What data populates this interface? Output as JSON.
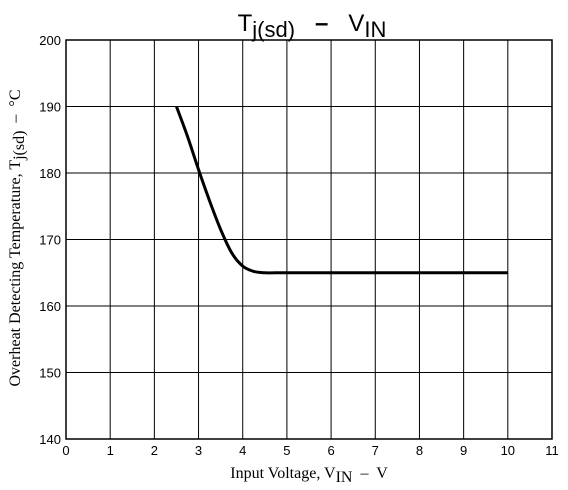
{
  "chart_data": {
    "type": "line",
    "title": {
      "main": "T",
      "main_sub": "j(sd)",
      "dash": "–",
      "rhs": "V",
      "rhs_sub": "IN"
    },
    "xlabel": {
      "pre": "Input Voltage, V",
      "sub": "IN",
      "post": "  –  V"
    },
    "ylabel": {
      "pre": "Overheat Detecting Temperature, T",
      "sub": "j(sd)",
      "post": "  –  °C"
    },
    "xlim": [
      0,
      11
    ],
    "ylim": [
      140,
      200
    ],
    "x_ticks": [
      "0",
      "1",
      "2",
      "3",
      "4",
      "5",
      "6",
      "7",
      "8",
      "9",
      "10",
      "11"
    ],
    "y_ticks": [
      "140",
      "150",
      "160",
      "170",
      "180",
      "190",
      "200"
    ],
    "grid": true,
    "series": [
      {
        "x": [
          2.5,
          2.75,
          3.0,
          3.25,
          3.5,
          3.75,
          4.0,
          4.25,
          4.5,
          5.0,
          6.0,
          7.0,
          8.0,
          9.0,
          10.0
        ],
        "y": [
          190,
          185.5,
          180.5,
          175.8,
          171.5,
          168.0,
          166.0,
          165.2,
          165,
          165,
          165,
          165,
          165,
          165,
          165
        ],
        "color": "#000000"
      }
    ]
  }
}
